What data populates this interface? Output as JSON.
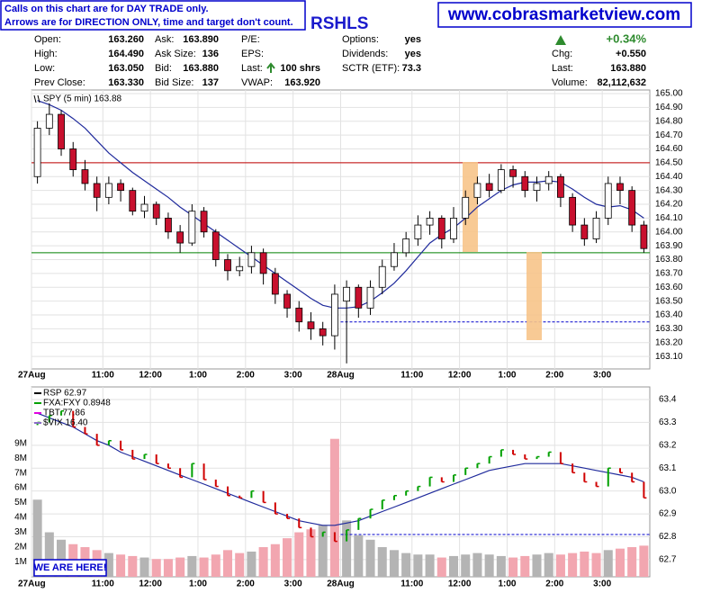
{
  "header": {
    "notes": [
      "Calls on this chart are for DAY TRADE only.",
      "Arrows are for DIRECTION ONLY, time and target don't count."
    ],
    "title": "RSHLS",
    "url": "www.cobrasmarketview.com"
  },
  "quote": {
    "rows": [
      [
        {
          "label": "Open:",
          "value": "163.260"
        },
        {
          "label": "Ask:",
          "value": "163.890"
        },
        {
          "label": "P/E:"
        },
        {
          "label": "Options:",
          "value": "yes"
        },
        {
          "value": "+0.34%"
        }
      ],
      [
        {
          "label": "High:",
          "value": "164.490"
        },
        {
          "label": "Ask Size:",
          "value": "136"
        },
        {
          "label": "EPS:"
        },
        {
          "label": "Dividends:",
          "value": "yes"
        },
        {
          "label": "Chg:",
          "value": "+0.550"
        }
      ],
      [
        {
          "label": "Low:",
          "value": "163.050"
        },
        {
          "label": "Bid:",
          "value": "163.880"
        },
        {
          "label": "Last:",
          "value": "100 shrs"
        },
        {
          "label": "SCTR (ETF):",
          "value": "73.3"
        },
        {
          "label": "Last:",
          "value": "163.880"
        }
      ],
      [
        {
          "label": "Prev Close:",
          "value": "163.330"
        },
        {
          "label": "Bid Size:",
          "value": "137"
        },
        {
          "label": "VWAP:",
          "value": "163.920"
        },
        null,
        {
          "label": "Volume:",
          "value": "82,112,632"
        }
      ]
    ]
  },
  "chart_data": [
    {
      "type": "candlestick",
      "legend": "SPY (5 min) 163.88",
      "categories": [
        "27Aug",
        null,
        null,
        null,
        null,
        null,
        "11:00",
        null,
        null,
        null,
        "12:00",
        null,
        null,
        null,
        "1:00",
        null,
        null,
        null,
        "2:00",
        null,
        null,
        null,
        "3:00",
        null,
        null,
        null,
        "28Aug",
        null,
        null,
        null,
        null,
        null,
        "11:00",
        null,
        null,
        null,
        "12:00",
        null,
        null,
        null,
        "1:00",
        null,
        null,
        null,
        "2:00",
        null,
        null,
        null,
        "3:00",
        null,
        null,
        null
      ],
      "open": [
        164.4,
        164.75,
        164.85,
        164.6,
        164.45,
        164.35,
        164.25,
        164.35,
        164.3,
        164.15,
        164.2,
        164.1,
        164.0,
        163.92,
        164.15,
        164.0,
        163.8,
        163.72,
        163.75,
        163.85,
        163.7,
        163.55,
        163.45,
        163.35,
        163.3,
        163.25,
        163.5,
        163.6,
        163.45,
        163.6,
        163.75,
        163.85,
        163.95,
        164.05,
        164.1,
        163.95,
        164.1,
        164.25,
        164.35,
        164.3,
        164.45,
        164.4,
        164.3,
        164.35,
        164.4,
        164.25,
        164.05,
        163.95,
        164.1,
        164.35,
        164.3,
        164.05
      ],
      "high": [
        164.8,
        164.93,
        164.88,
        164.65,
        164.52,
        164.4,
        164.4,
        164.38,
        164.32,
        164.26,
        164.22,
        164.14,
        164.05,
        164.2,
        164.18,
        164.02,
        163.84,
        163.82,
        163.9,
        163.88,
        163.74,
        163.58,
        163.5,
        163.42,
        163.35,
        163.62,
        163.65,
        163.62,
        163.65,
        163.8,
        163.92,
        164.0,
        164.12,
        164.15,
        164.12,
        164.18,
        164.3,
        164.4,
        164.42,
        164.49,
        164.48,
        164.44,
        164.4,
        164.44,
        164.42,
        164.28,
        164.1,
        164.15,
        164.4,
        164.4,
        164.33,
        164.08
      ],
      "low": [
        164.35,
        164.7,
        164.55,
        164.4,
        164.3,
        164.15,
        164.2,
        164.22,
        164.12,
        164.1,
        164.05,
        163.95,
        163.85,
        163.9,
        163.96,
        163.75,
        163.65,
        163.68,
        163.7,
        163.62,
        163.48,
        163.38,
        163.28,
        163.22,
        163.18,
        163.15,
        163.05,
        163.38,
        163.4,
        163.55,
        163.72,
        163.82,
        163.9,
        163.98,
        163.88,
        163.92,
        164.05,
        164.2,
        164.25,
        164.28,
        164.32,
        164.25,
        164.22,
        164.3,
        164.18,
        164.0,
        163.9,
        163.92,
        164.05,
        164.2,
        164.0,
        163.85
      ],
      "close": [
        164.75,
        164.85,
        164.6,
        164.45,
        164.35,
        164.25,
        164.35,
        164.3,
        164.15,
        164.2,
        164.1,
        164.0,
        163.92,
        164.15,
        164.0,
        163.8,
        163.72,
        163.75,
        163.85,
        163.7,
        163.55,
        163.45,
        163.35,
        163.3,
        163.25,
        163.55,
        163.6,
        163.45,
        163.6,
        163.75,
        163.85,
        163.95,
        164.05,
        164.1,
        163.95,
        164.1,
        164.25,
        164.35,
        164.3,
        164.45,
        164.4,
        164.3,
        164.35,
        164.4,
        164.25,
        164.05,
        163.95,
        164.1,
        164.35,
        164.3,
        164.05,
        163.88
      ],
      "up_color": "#ffffff",
      "down_color": "#c8102e",
      "ma": {
        "color": "#1f2a9c",
        "values": [
          164.95,
          164.92,
          164.88,
          164.82,
          164.75,
          164.66,
          164.57,
          164.5,
          164.43,
          164.37,
          164.31,
          164.25,
          164.18,
          164.12,
          164.06,
          164.0,
          163.94,
          163.88,
          163.82,
          163.76,
          163.7,
          163.64,
          163.58,
          163.52,
          163.47,
          163.45,
          163.45,
          163.46,
          163.5,
          163.56,
          163.63,
          163.72,
          163.82,
          163.92,
          163.98,
          164.03,
          164.1,
          164.18,
          164.24,
          164.3,
          164.34,
          164.36,
          164.36,
          164.37,
          164.36,
          164.31,
          164.25,
          164.2,
          164.18,
          164.19,
          164.16,
          164.1
        ]
      },
      "levels": [
        {
          "value": 164.5,
          "color": "#c00000"
        },
        {
          "value": 163.85,
          "color": "#008000"
        },
        {
          "value": 163.35,
          "color": "#0000cc",
          "dashed": true
        }
      ],
      "ylim": [
        163.01,
        165.026
      ],
      "yticks": [
        {
          "value": 165,
          "label": "165.00"
        },
        {
          "value": 164.9,
          "label": "164.90"
        },
        {
          "value": 164.8,
          "label": "164.80"
        },
        {
          "value": 164.7,
          "label": "164.70"
        },
        {
          "value": 164.6,
          "label": "164.60"
        },
        {
          "value": 164.5,
          "label": "164.50"
        },
        {
          "value": 164.4,
          "label": "164.40"
        },
        {
          "value": 164.3,
          "label": "164.30"
        },
        {
          "value": 164.2,
          "label": "164.20"
        },
        {
          "value": 164.1,
          "label": "164.10"
        },
        {
          "value": 164,
          "label": "164.00"
        },
        {
          "value": 163.9,
          "label": "163.90"
        },
        {
          "value": 163.8,
          "label": "163.80"
        },
        {
          "value": 163.7,
          "label": "163.70"
        },
        {
          "value": 163.6,
          "label": "163.60"
        },
        {
          "value": 163.5,
          "label": "163.50"
        },
        {
          "value": 163.4,
          "label": "163.40"
        },
        {
          "value": 163.3,
          "label": "163.30"
        },
        {
          "value": 163.2,
          "label": "163.20"
        },
        {
          "value": 163.1,
          "label": "163.10"
        }
      ],
      "grid": true
    },
    {
      "type": "bar-line",
      "categories": [
        "27Aug",
        null,
        null,
        null,
        null,
        null,
        "11:00",
        null,
        null,
        null,
        "12:00",
        null,
        null,
        null,
        "1:00",
        null,
        null,
        null,
        "2:00",
        null,
        null,
        null,
        "3:00",
        null,
        null,
        null,
        "28Aug",
        null,
        null,
        null,
        null,
        null,
        "11:00",
        null,
        null,
        null,
        "12:00",
        null,
        null,
        null,
        "1:00",
        null,
        null,
        null,
        "2:00",
        null,
        null,
        null,
        "3:00",
        null,
        null,
        null
      ],
      "series": [
        {
          "name": "RSP 62.97",
          "color": "#000000",
          "values": [
            63.3,
            63.33,
            63.35,
            63.28,
            63.25,
            63.2,
            63.22,
            63.18,
            63.14,
            63.16,
            63.12,
            63.1,
            63.06,
            63.12,
            63.05,
            63.02,
            62.98,
            62.97,
            63.0,
            62.95,
            62.9,
            62.88,
            62.84,
            62.8,
            62.82,
            62.78,
            62.83,
            62.88,
            62.92,
            62.96,
            62.98,
            63.0,
            63.02,
            63.06,
            63.04,
            63.07,
            63.1,
            63.12,
            63.15,
            63.18,
            63.16,
            63.14,
            63.15,
            63.17,
            63.12,
            63.08,
            63.04,
            63.02,
            63.1,
            63.08,
            63.04,
            62.97
          ]
        }
      ],
      "overlays": [
        {
          "name": "FXA:FXY 0.8948",
          "color": "#00a000"
        },
        {
          "name": "TBT 77.86",
          "color": "#e000e0"
        },
        {
          "name": "$VIX 16.40",
          "color": "#8a6cc8"
        }
      ],
      "up_color": "#00a000",
      "down_color": "#d00000",
      "ma": {
        "color": "#1f2a9c",
        "values": [
          63.34,
          63.32,
          63.3,
          63.28,
          63.25,
          63.22,
          63.2,
          63.17,
          63.15,
          63.13,
          63.11,
          63.09,
          63.07,
          63.05,
          63.03,
          63.01,
          62.99,
          62.97,
          62.95,
          62.93,
          62.91,
          62.89,
          62.87,
          62.86,
          62.85,
          62.85,
          62.86,
          62.87,
          62.89,
          62.91,
          62.93,
          62.95,
          62.97,
          62.99,
          63.01,
          63.03,
          63.05,
          63.07,
          63.09,
          63.1,
          63.11,
          63.12,
          63.12,
          63.12,
          63.12,
          63.11,
          63.1,
          63.09,
          63.08,
          63.07,
          63.06,
          63.04
        ]
      },
      "levels": [
        {
          "value": 62.81,
          "color": "#0000cc",
          "dashed": true
        }
      ],
      "ylim": [
        62.625,
        63.455
      ],
      "yticks": [
        63.4,
        63.3,
        63.2,
        63.1,
        {
          "value": 63,
          "label": "63.0"
        },
        62.9,
        62.8,
        62.7
      ],
      "volume": {
        "up_color": "#b4b4b4",
        "down_color": "#f2a6b0",
        "values": [
          5200000,
          3000000,
          2500000,
          2200000,
          2000000,
          1800000,
          1600000,
          1500000,
          1400000,
          1300000,
          1200000,
          1200000,
          1300000,
          1400000,
          1300000,
          1500000,
          1800000,
          1600000,
          1700000,
          2000000,
          2200000,
          2600000,
          3000000,
          3200000,
          3500000,
          9300000,
          3800000,
          2800000,
          2500000,
          2000000,
          1800000,
          1600000,
          1500000,
          1500000,
          1300000,
          1400000,
          1500000,
          1600000,
          1500000,
          1400000,
          1300000,
          1400000,
          1500000,
          1600000,
          1500000,
          1600000,
          1700000,
          1600000,
          1800000,
          1900000,
          2000000,
          2100000
        ],
        "ylim": [
          0,
          12800000
        ],
        "yticks": [
          {
            "value": 9000000,
            "label": "9M"
          },
          {
            "value": 8000000,
            "label": "8M"
          },
          {
            "value": 7000000,
            "label": "7M"
          },
          {
            "value": 6000000,
            "label": "6M"
          },
          {
            "value": 5000000,
            "label": "5M"
          },
          {
            "value": 4000000,
            "label": "4M"
          },
          {
            "value": 3000000,
            "label": "3M"
          },
          {
            "value": 2000000,
            "label": "2M"
          },
          {
            "value": 1000000,
            "label": "1M"
          }
        ]
      },
      "grid": true
    }
  ],
  "annotation": "WE ARE HERE!"
}
